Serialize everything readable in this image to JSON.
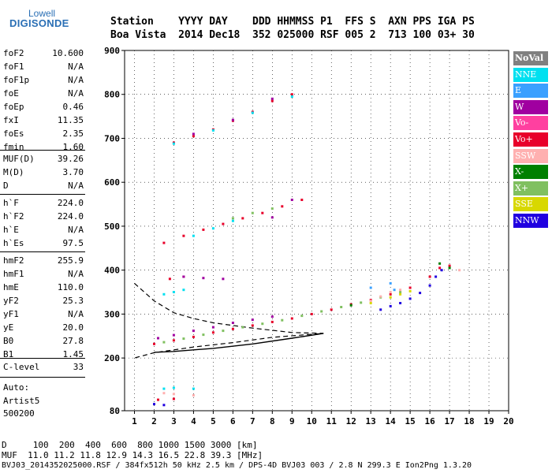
{
  "logo": {
    "top": "Lowell",
    "bottom": "DIGISONDE"
  },
  "header": {
    "line1": "Station    YYYY DAY    DDD HHMMSS P1  FFS S  AXN PPS IGA PS",
    "line2": "Boa Vista  2014 Dec18  352 025000 RSF 005 2  713 100 03+ 30"
  },
  "params": {
    "group1": [
      {
        "k": "foF2",
        "v": "10.600"
      },
      {
        "k": "foF1",
        "v": "N/A"
      },
      {
        "k": "foF1p",
        "v": "N/A"
      },
      {
        "k": "foE",
        "v": "N/A"
      },
      {
        "k": "foEp",
        "v": "0.46"
      },
      {
        "k": "fxI",
        "v": "11.35"
      },
      {
        "k": "foEs",
        "v": "2.35"
      },
      {
        "k": "fmin",
        "v": "1.60"
      }
    ],
    "group2": [
      {
        "k": "MUF(D)",
        "v": "39.26"
      },
      {
        "k": "M(D)",
        "v": "3.70"
      },
      {
        "k": "D",
        "v": "N/A"
      }
    ],
    "group3": [
      {
        "k": "h`F",
        "v": "224.0"
      },
      {
        "k": "h`F2",
        "v": "224.0"
      },
      {
        "k": "h`E",
        "v": "N/A"
      },
      {
        "k": "h`Es",
        "v": "97.5"
      }
    ],
    "group4": [
      {
        "k": "hmF2",
        "v": "255.9"
      },
      {
        "k": "hmF1",
        "v": "N/A"
      },
      {
        "k": "hmE",
        "v": "110.0"
      },
      {
        "k": "yF2",
        "v": "25.3"
      },
      {
        "k": "yF1",
        "v": "N/A"
      },
      {
        "k": "yE",
        "v": "20.0"
      },
      {
        "k": "B0",
        "v": "27.8"
      },
      {
        "k": "B1",
        "v": "1.45"
      }
    ],
    "group5": [
      {
        "k": "C-level",
        "v": "33"
      }
    ],
    "auto": {
      "label": "Auto:",
      "name": "Artist5",
      "code": "500200"
    }
  },
  "legend": [
    {
      "label": "NoVal",
      "color": "#808080"
    },
    {
      "label": "NNE",
      "color": "#00e0f0"
    },
    {
      "label": "E",
      "color": "#3aa0ff"
    },
    {
      "label": "W",
      "color": "#a000a0"
    },
    {
      "label": "Vo-",
      "color": "#ff40a0"
    },
    {
      "label": "Vo+",
      "color": "#e8002a"
    },
    {
      "label": "SSW",
      "color": "#ffb0b0"
    },
    {
      "label": "X-",
      "color": "#008000"
    },
    {
      "label": "X+",
      "color": "#80c060"
    },
    {
      "label": "SSE",
      "color": "#d8d800"
    },
    {
      "label": "NNW",
      "color": "#2000e0"
    }
  ],
  "footer": {
    "line1": "D     100  200  400  600  800 1000 1500 3000 [km]",
    "line2": "MUF  11.0 11.2 11.8 12.9 14.3 16.5 22.8 39.3 [MHz]",
    "line3": "BVJ03_2014352025000.RSF / 384fx512h 50 kHz 2.5 km / DPS-4D BVJ03 003 / 2.8 N 299.3 E Ion2Png 1.3.20"
  },
  "chart_data": {
    "type": "scatter",
    "title": "",
    "xlabel": "",
    "ylabel": "",
    "xlim": [
      0.5,
      20.0
    ],
    "ylim": [
      80,
      900
    ],
    "xticks": [
      "1",
      "2",
      "3",
      "4",
      "5",
      "6",
      "7",
      "8",
      "9",
      "10",
      "11",
      "12",
      "13",
      "14",
      "15",
      "16",
      "17",
      "18",
      "19",
      "20"
    ],
    "yticks": [
      {
        "v": 80,
        "label": "80"
      },
      {
        "v": 200,
        "label": "200"
      },
      {
        "v": 300,
        "label": "300"
      },
      {
        "v": 400,
        "label": "400"
      },
      {
        "v": 500,
        "label": "500"
      },
      {
        "v": 600,
        "label": "600"
      },
      {
        "v": 700,
        "label": "700"
      },
      {
        "v": 800,
        "label": "800"
      },
      {
        "v": 900,
        "label": "900"
      }
    ],
    "grid": true,
    "series": [
      {
        "name": "Vo+",
        "color": "#e8002a",
        "points": [
          [
            2.0,
            232
          ],
          [
            3.0,
            240
          ],
          [
            4.0,
            248
          ],
          [
            5.0,
            258
          ],
          [
            6.0,
            266
          ],
          [
            7.0,
            274
          ],
          [
            8.0,
            282
          ],
          [
            9.0,
            290
          ],
          [
            10.0,
            300
          ],
          [
            11.0,
            310
          ],
          [
            12.0,
            322
          ],
          [
            13.0,
            332
          ],
          [
            14.0,
            345
          ],
          [
            15.0,
            360
          ],
          [
            16.0,
            385
          ],
          [
            16.5,
            405
          ],
          [
            17.0,
            410
          ],
          [
            2.5,
            462
          ],
          [
            3.5,
            478
          ],
          [
            4.5,
            492
          ],
          [
            5.5,
            505
          ],
          [
            6.5,
            518
          ],
          [
            7.5,
            530
          ],
          [
            8.5,
            545
          ],
          [
            9.5,
            560
          ],
          [
            3.0,
            690
          ],
          [
            4.0,
            705
          ],
          [
            5.0,
            720
          ],
          [
            6.0,
            740
          ],
          [
            7.0,
            760
          ],
          [
            8.0,
            785
          ],
          [
            9.0,
            800
          ],
          [
            2.2,
            105
          ],
          [
            3.0,
            107
          ],
          [
            2.8,
            380
          ],
          [
            3.5,
            385
          ]
        ]
      },
      {
        "name": "X+",
        "color": "#80c060",
        "points": [
          [
            2.5,
            236
          ],
          [
            3.5,
            244
          ],
          [
            4.5,
            253
          ],
          [
            5.5,
            262
          ],
          [
            6.5,
            270
          ],
          [
            7.5,
            278
          ],
          [
            8.5,
            286
          ],
          [
            9.5,
            296
          ],
          [
            10.5,
            306
          ],
          [
            11.5,
            316
          ],
          [
            12.5,
            326
          ],
          [
            13.5,
            338
          ],
          [
            14.5,
            350
          ],
          [
            6.0,
            518
          ],
          [
            7.0,
            530
          ],
          [
            8.0,
            540
          ]
        ]
      },
      {
        "name": "NNW",
        "color": "#2000e0",
        "points": [
          [
            13.5,
            310
          ],
          [
            14.0,
            318
          ],
          [
            14.5,
            325
          ],
          [
            15.0,
            335
          ],
          [
            15.5,
            348
          ],
          [
            16.0,
            365
          ],
          [
            16.3,
            385
          ],
          [
            16.6,
            400
          ],
          [
            2.0,
            95
          ],
          [
            2.5,
            93
          ]
        ]
      },
      {
        "name": "W",
        "color": "#a000a0",
        "points": [
          [
            2.2,
            245
          ],
          [
            3.0,
            252
          ],
          [
            4.0,
            262
          ],
          [
            5.0,
            270
          ],
          [
            6.0,
            280
          ],
          [
            7.0,
            287
          ],
          [
            8.0,
            294
          ],
          [
            3.5,
            385
          ],
          [
            4.5,
            382
          ],
          [
            5.5,
            380
          ],
          [
            8.0,
            520
          ],
          [
            9.0,
            560
          ],
          [
            4.0,
            710
          ],
          [
            6.0,
            742
          ],
          [
            8.0,
            790
          ]
        ]
      },
      {
        "name": "NNE",
        "color": "#00e0f0",
        "points": [
          [
            2.5,
            345
          ],
          [
            3.0,
            350
          ],
          [
            3.5,
            355
          ],
          [
            4.0,
            478
          ],
          [
            5.0,
            495
          ],
          [
            6.0,
            512
          ],
          [
            3.0,
            688
          ],
          [
            5.0,
            718
          ],
          [
            7.0,
            758
          ],
          [
            9.0,
            795
          ],
          [
            2.5,
            130
          ],
          [
            3.0,
            132
          ],
          [
            4.0,
            130
          ]
        ]
      },
      {
        "name": "SSW",
        "color": "#ffb0b0",
        "points": [
          [
            13.0,
            330
          ],
          [
            13.5,
            340
          ],
          [
            14.0,
            350
          ],
          [
            14.5,
            355
          ],
          [
            17.5,
            400
          ],
          [
            2.5,
            120
          ],
          [
            3.0,
            118
          ],
          [
            4.0,
            115
          ]
        ]
      },
      {
        "name": "SSE",
        "color": "#d8d800",
        "points": [
          [
            14.0,
            338
          ],
          [
            14.5,
            345
          ],
          [
            15.0,
            352
          ],
          [
            13.0,
            325
          ]
        ]
      },
      {
        "name": "E",
        "color": "#3aa0ff",
        "points": [
          [
            14.0,
            370
          ],
          [
            14.2,
            355
          ],
          [
            13.0,
            360
          ]
        ]
      },
      {
        "name": "X-",
        "color": "#008000",
        "points": [
          [
            16.5,
            415
          ],
          [
            17.0,
            405
          ],
          [
            12.0,
            320
          ]
        ]
      }
    ],
    "profile_solid": [
      [
        10.6,
        256
      ],
      [
        9.0,
        245
      ],
      [
        7.0,
        232
      ],
      [
        5.0,
        222
      ],
      [
        3.0,
        215
      ],
      [
        2.0,
        213
      ]
    ],
    "profile_dashed": [
      [
        1.0,
        370
      ],
      [
        2.0,
        330
      ],
      [
        3.0,
        303
      ],
      [
        4.0,
        290
      ],
      [
        5.0,
        280
      ],
      [
        7.0,
        268
      ],
      [
        9.0,
        258
      ],
      [
        10.6,
        256
      ],
      [
        8.0,
        247
      ],
      [
        6.0,
        235
      ],
      [
        4.0,
        225
      ],
      [
        2.0,
        212
      ],
      [
        1.0,
        200
      ]
    ]
  }
}
